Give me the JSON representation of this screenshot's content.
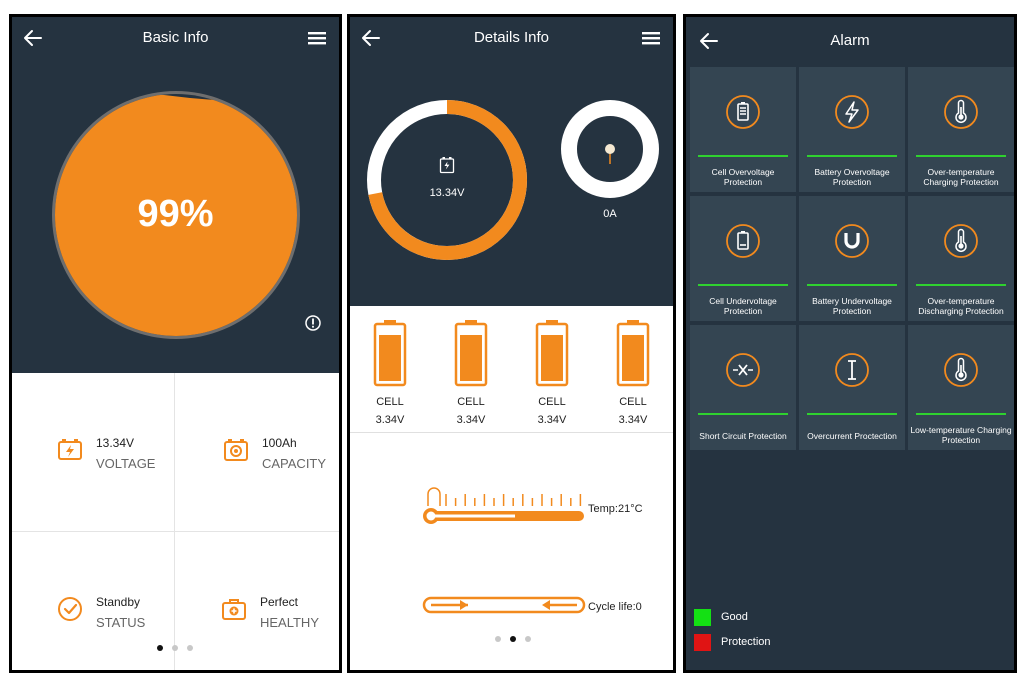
{
  "basic": {
    "title": "Basic Info",
    "soc_text": "99%",
    "soc_fraction": 0.99,
    "cells": [
      {
        "value": "13.34V",
        "label": "VOLTAGE"
      },
      {
        "value": "100Ah",
        "label": "CAPACITY"
      },
      {
        "value": "Standby",
        "label": "STATUS"
      },
      {
        "value": "Perfect",
        "label": "HEALTHY"
      }
    ],
    "page_dots_active": 0
  },
  "details": {
    "title": "Details Info",
    "voltage_text": "13.34V",
    "voltage_ring_fraction": 0.72,
    "current_text": "0A",
    "cells": [
      {
        "name": "CELL",
        "voltage": "3.34V"
      },
      {
        "name": "CELL",
        "voltage": "3.34V"
      },
      {
        "name": "CELL",
        "voltage": "3.34V"
      },
      {
        "name": "CELL",
        "voltage": "3.34V"
      }
    ],
    "temperature_text": "Temp:21°C",
    "cycle_text": "Cycle life:0",
    "page_dots_active": 1
  },
  "alarm": {
    "title": "Alarm",
    "items": [
      {
        "label": "Cell Overvoltage Protection",
        "icon": "battery-full-icon",
        "status": "good"
      },
      {
        "label": "Battery Overvoltage Protection",
        "icon": "lightning-icon",
        "status": "good"
      },
      {
        "label": "Over-temperature Charging Protection",
        "icon": "thermometer-icon",
        "status": "good"
      },
      {
        "label": "Cell Undervoltage Protection",
        "icon": "battery-low-icon",
        "status": "good"
      },
      {
        "label": "Battery Undervoltage Protection",
        "icon": "magnet-icon",
        "status": "good"
      },
      {
        "label": "Over-temperature Discharging Protection",
        "icon": "thermometer-icon",
        "status": "good"
      },
      {
        "label": "Short Circuit Protection",
        "icon": "short-circuit-icon",
        "status": "good"
      },
      {
        "label": "Overcurrent Proctection",
        "icon": "current-icon",
        "status": "good"
      },
      {
        "label": "Low-temperature Charging Protection",
        "icon": "thermometer-icon",
        "status": "good"
      }
    ],
    "legend": [
      {
        "label": "Good",
        "color": "#14e014"
      },
      {
        "label": "Protection",
        "color": "#e01414"
      }
    ]
  },
  "colors": {
    "accent": "#f28a1e",
    "dark": "#253340",
    "tile": "#344552",
    "good": "#2fd12f"
  }
}
